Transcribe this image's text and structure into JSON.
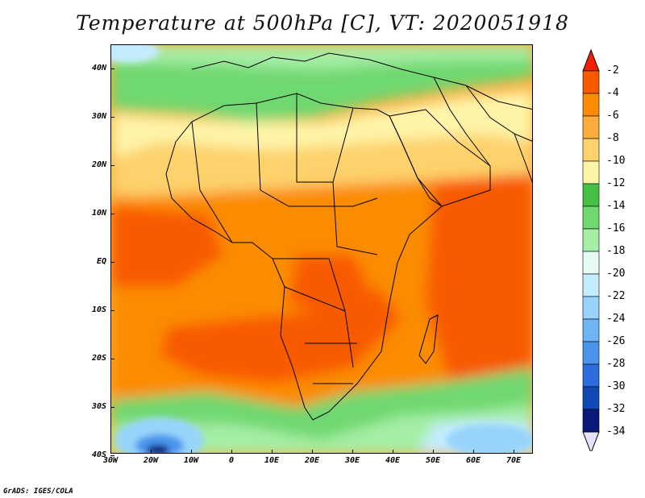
{
  "title": "Temperature at 500hPa [C], VT: 2020051918",
  "footer": "GrADS: IGES/COLA",
  "lat_axis": [
    "40N",
    "30N",
    "20N",
    "10N",
    "EQ",
    "10S",
    "20S",
    "30S",
    "40S"
  ],
  "lon_axis": [
    "30W",
    "20W",
    "10W",
    "0",
    "10E",
    "20E",
    "30E",
    "40E",
    "50E",
    "60E",
    "70E"
  ],
  "colorbar": {
    "labels": [
      "-2",
      "-4",
      "-6",
      "-8",
      "-10",
      "-12",
      "-14",
      "-16",
      "-18",
      "-20",
      "-22",
      "-24",
      "-26",
      "-28",
      "-30",
      "-32",
      "-34"
    ],
    "colors": [
      "#f02000",
      "#f85a00",
      "#fb8c00",
      "#fcac3c",
      "#fdd26c",
      "#fef4a8",
      "#44c044",
      "#6fd86f",
      "#a6eea6",
      "#e6fcf2",
      "#c4ecff",
      "#98d4fa",
      "#6fb4f4",
      "#4a94ec",
      "#2c6cdc",
      "#1048b8",
      "#0a1a78",
      "#e6e2fa"
    ]
  },
  "colors": {
    "land_outline": "#000000",
    "background": "#ffffff"
  }
}
